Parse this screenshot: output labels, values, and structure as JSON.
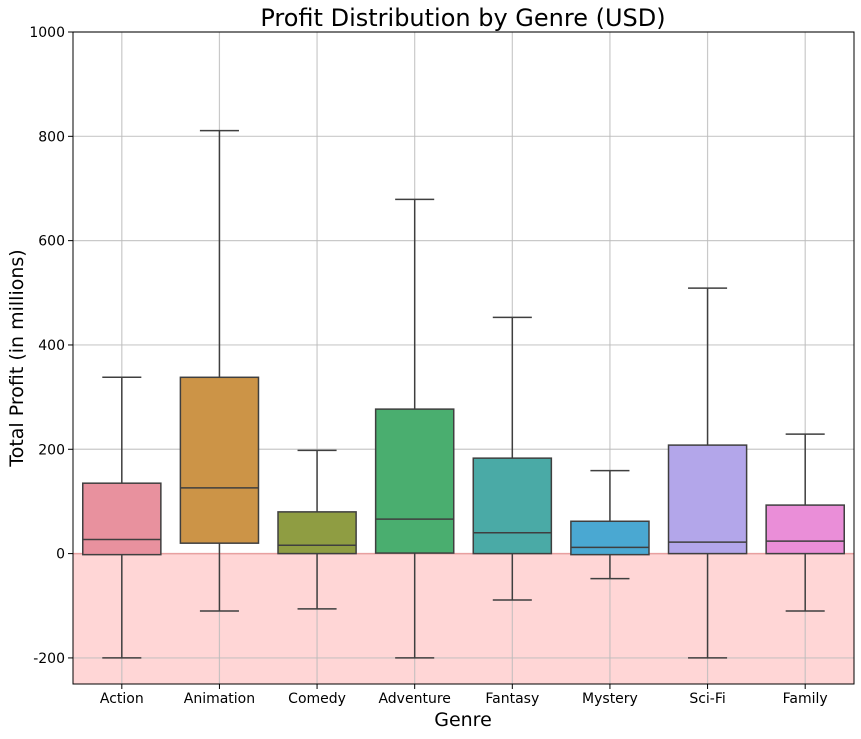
{
  "chart_data": {
    "type": "box",
    "title": "Profit Distribution by Genre (USD)",
    "xlabel": "Genre",
    "ylabel": "Total Profit (in millions)",
    "ylim": [
      -250,
      1000
    ],
    "yticks": [
      -200,
      0,
      200,
      400,
      600,
      800,
      1000
    ],
    "grid": true,
    "negative_region_color": "#ffd6d6",
    "zero_line_color": "#e8a0a0",
    "categories": [
      "Action",
      "Animation",
      "Comedy",
      "Adventure",
      "Fantasy",
      "Mystery",
      "Sci-Fi",
      "Family"
    ],
    "boxes": [
      {
        "category": "Action",
        "whisker_low": -200,
        "q1": -2,
        "median": 27,
        "q3": 135,
        "whisker_high": 338,
        "color": "#e8919e"
      },
      {
        "category": "Animation",
        "whisker_low": -110,
        "q1": 20,
        "median": 126,
        "q3": 338,
        "whisker_high": 811,
        "color": "#cc9447"
      },
      {
        "category": "Comedy",
        "whisker_low": -106,
        "q1": 0,
        "median": 16,
        "q3": 80,
        "whisker_high": 198,
        "color": "#8f9d42"
      },
      {
        "category": "Adventure",
        "whisker_low": -200,
        "q1": 1,
        "median": 66,
        "q3": 277,
        "whisker_high": 679,
        "color": "#4aae6f"
      },
      {
        "category": "Fantasy",
        "whisker_low": -89,
        "q1": 0,
        "median": 40,
        "q3": 183,
        "whisker_high": 453,
        "color": "#4aaaa6"
      },
      {
        "category": "Mystery",
        "whisker_low": -48,
        "q1": -2,
        "median": 12,
        "q3": 62,
        "whisker_high": 159,
        "color": "#4aa8d2"
      },
      {
        "category": "Sci-Fi",
        "whisker_low": -200,
        "q1": 0,
        "median": 22,
        "q3": 208,
        "whisker_high": 509,
        "color": "#b3a6ea"
      },
      {
        "category": "Family",
        "whisker_low": -110,
        "q1": 0,
        "median": 24,
        "q3": 93,
        "whisker_high": 229,
        "color": "#ea8ed8"
      }
    ]
  }
}
